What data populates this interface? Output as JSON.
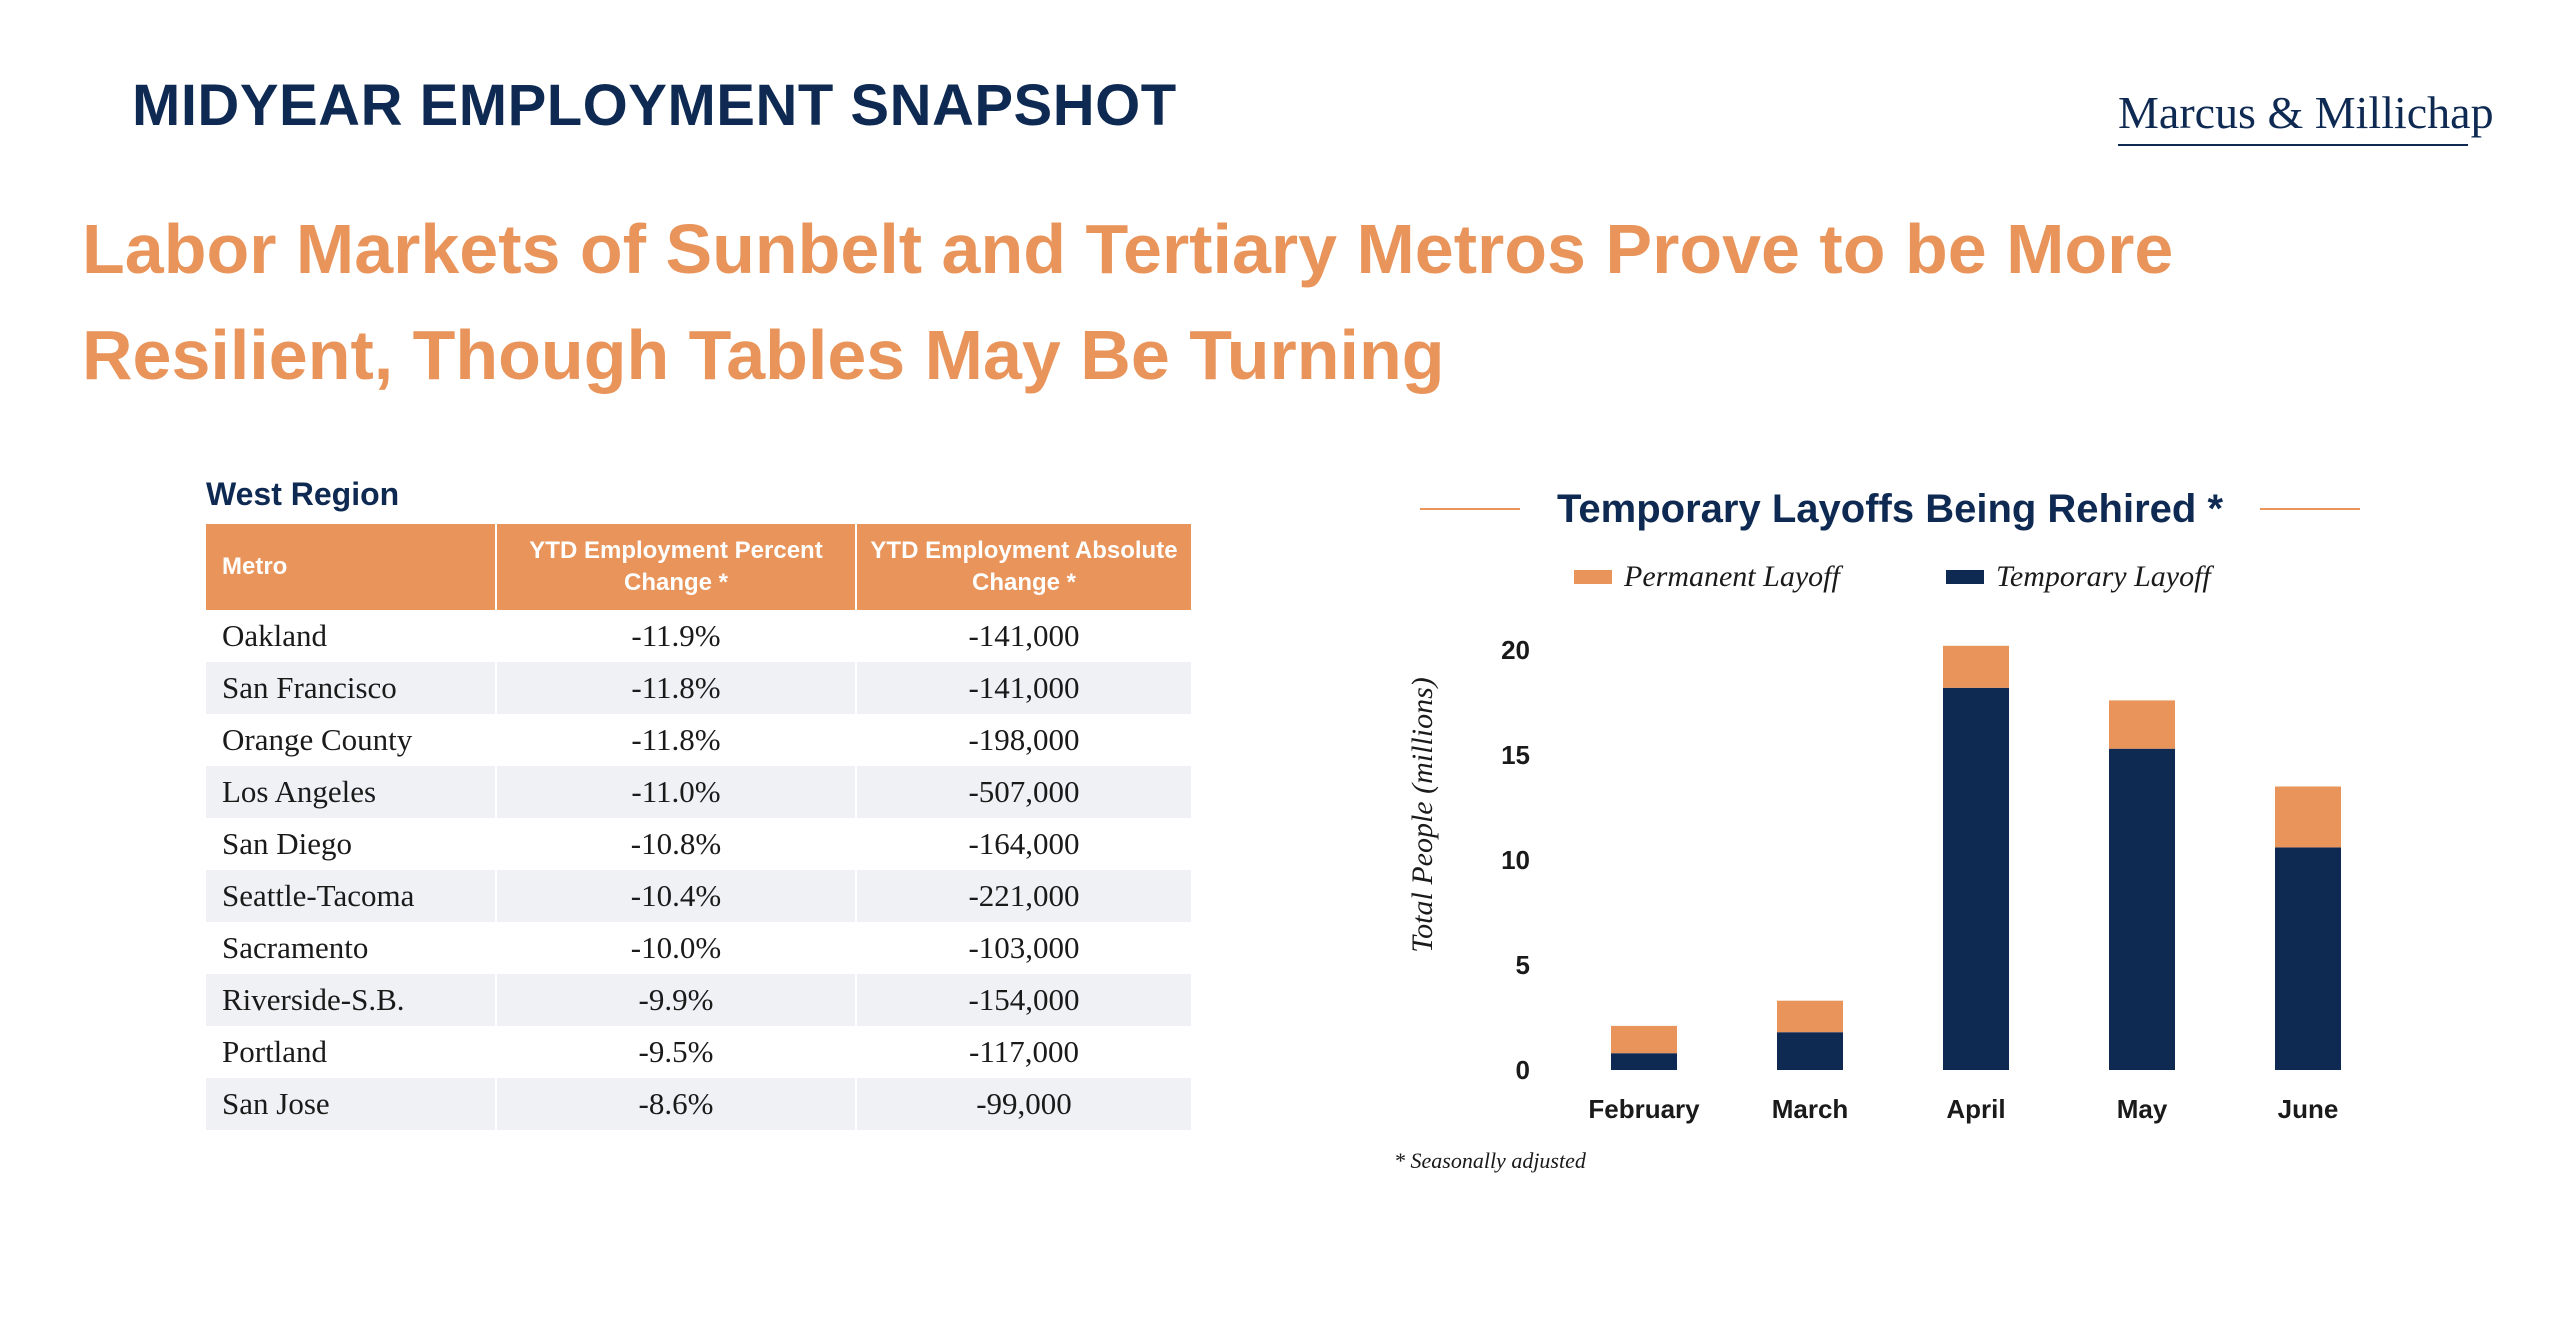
{
  "header": {
    "title": "MIDYEAR EMPLOYMENT SNAPSHOT",
    "logo_text": "Marcus & Millichap"
  },
  "headline": "Labor Markets of Sunbelt and Tertiary Metros Prove to be More Resilient, Though Tables May Be Turning",
  "table": {
    "region": "West Region",
    "columns": [
      "Metro",
      "YTD Employment Percent Change *",
      "YTD Employment Absolute Change *"
    ],
    "rows": [
      [
        "Oakland",
        "-11.9%",
        "-141,000"
      ],
      [
        "San Francisco",
        "-11.8%",
        "-141,000"
      ],
      [
        "Orange County",
        "-11.8%",
        "-198,000"
      ],
      [
        "Los Angeles",
        "-11.0%",
        "-507,000"
      ],
      [
        "San Diego",
        "-10.8%",
        "-164,000"
      ],
      [
        "Seattle-Tacoma",
        "-10.4%",
        "-221,000"
      ],
      [
        "Sacramento",
        "-10.0%",
        "-103,000"
      ],
      [
        "Riverside-S.B.",
        "-9.9%",
        "-154,000"
      ],
      [
        "Portland",
        "-9.5%",
        "-117,000"
      ],
      [
        "San Jose",
        "-8.6%",
        "-99,000"
      ]
    ]
  },
  "chart_data": {
    "type": "bar",
    "stacked": true,
    "title": "Temporary Layoffs Being Rehired *",
    "ylabel": "Total People (millions)",
    "xlabel": "",
    "categories": [
      "February",
      "March",
      "April",
      "May",
      "June"
    ],
    "series": [
      {
        "name": "Temporary Layoff",
        "values": [
          0.8,
          1.8,
          18.2,
          15.3,
          10.6
        ],
        "color": "#0f2a52"
      },
      {
        "name": "Permanent Layoff",
        "values": [
          1.3,
          1.5,
          2.0,
          2.3,
          2.9
        ],
        "color": "#e8945a"
      }
    ],
    "legend_order": [
      "Permanent Layoff",
      "Temporary Layoff"
    ],
    "ylim": [
      0,
      20
    ],
    "yticks": [
      "0",
      "5",
      "10",
      "15",
      "20"
    ],
    "grid": false,
    "legend_position": "top",
    "footnote": "* Seasonally adjusted"
  },
  "colors": {
    "navy": "#0f2a52",
    "orange": "#e8945a",
    "row_alt": "#f0f1f4"
  }
}
